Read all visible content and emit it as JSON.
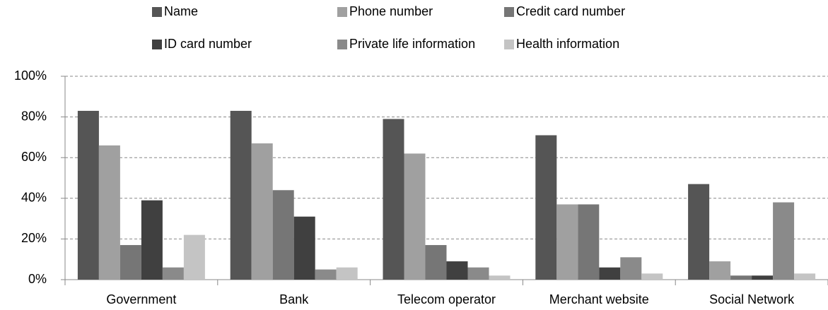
{
  "chart_data": {
    "type": "bar",
    "categories": [
      "Government",
      "Bank",
      "Telecom operator",
      "Merchant website",
      "Social Network"
    ],
    "series": [
      {
        "name": "Name",
        "color": "#555555",
        "values": [
          83,
          83,
          79,
          71,
          47
        ]
      },
      {
        "name": "Phone number",
        "color": "#a0a0a0",
        "values": [
          66,
          67,
          62,
          37,
          9
        ]
      },
      {
        "name": "Credit card number",
        "color": "#767676",
        "values": [
          17,
          44,
          17,
          37,
          2
        ]
      },
      {
        "name": "ID card number",
        "color": "#404040",
        "values": [
          39,
          31,
          9,
          6,
          2
        ]
      },
      {
        "name": "Private life information",
        "color": "#8a8a8a",
        "values": [
          6,
          5,
          6,
          11,
          38
        ]
      },
      {
        "name": "Health information",
        "color": "#c4c4c4",
        "values": [
          22,
          6,
          2,
          3,
          3
        ]
      }
    ],
    "ylim": [
      0,
      100
    ],
    "yticks": [
      {
        "value": 0,
        "label": "0%"
      },
      {
        "value": 20,
        "label": "20%"
      },
      {
        "value": 40,
        "label": "40%"
      },
      {
        "value": 60,
        "label": "60%"
      },
      {
        "value": 80,
        "label": "80%"
      },
      {
        "value": 100,
        "label": "100%"
      }
    ],
    "grid": true,
    "legend": "top"
  }
}
